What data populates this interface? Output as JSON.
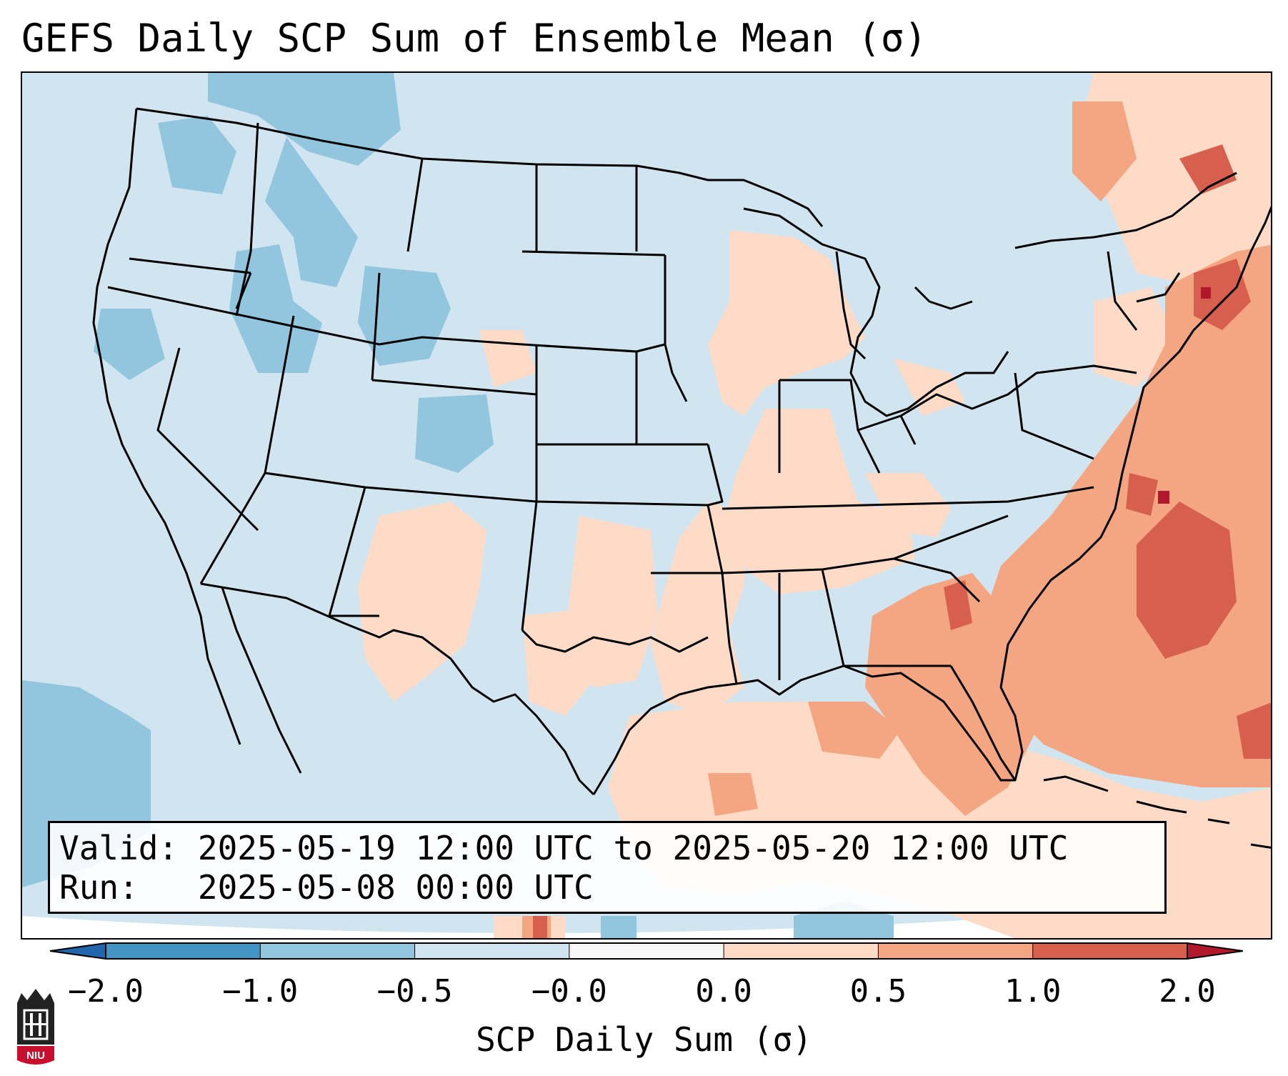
{
  "figure": {
    "title": "GEFS Daily SCP Sum of Ensemble Mean (σ)"
  },
  "info": {
    "valid_label": "Valid:",
    "valid_value": "2025-05-19 12:00 UTC to 2025-05-20 12:00 UTC",
    "run_label": "Run:",
    "run_value": "2025-05-08 00:00 UTC"
  },
  "colorbar": {
    "label": "SCP Daily Sum (σ)",
    "ticks": [
      "−2.0",
      "−1.0",
      "−0.5",
      "−0.0",
      "0.0",
      "0.5",
      "1.0",
      "2.0"
    ],
    "bins": [
      {
        "from": -2.0,
        "to": -1.0,
        "color": "#4393c3"
      },
      {
        "from": -1.0,
        "to": -0.5,
        "color": "#92c5de"
      },
      {
        "from": -0.5,
        "to": -0.0,
        "color": "#d1e5f0"
      },
      {
        "from": -0.0,
        "to": 0.0,
        "color": "#f7f7f7"
      },
      {
        "from": 0.0,
        "to": 0.5,
        "color": "#fddbc7"
      },
      {
        "from": 0.5,
        "to": 1.0,
        "color": "#f4a582"
      },
      {
        "from": 1.0,
        "to": 2.0,
        "color": "#d6604d"
      }
    ],
    "under_color": "#2166ac",
    "over_color": "#b2182b",
    "extend": "both"
  },
  "map": {
    "region": "Contiguous United States",
    "background_color": "#d1e5f0",
    "boundaries": [
      "coastlines",
      "country borders",
      "state borders"
    ]
  },
  "logo": {
    "text": "NIU"
  }
}
